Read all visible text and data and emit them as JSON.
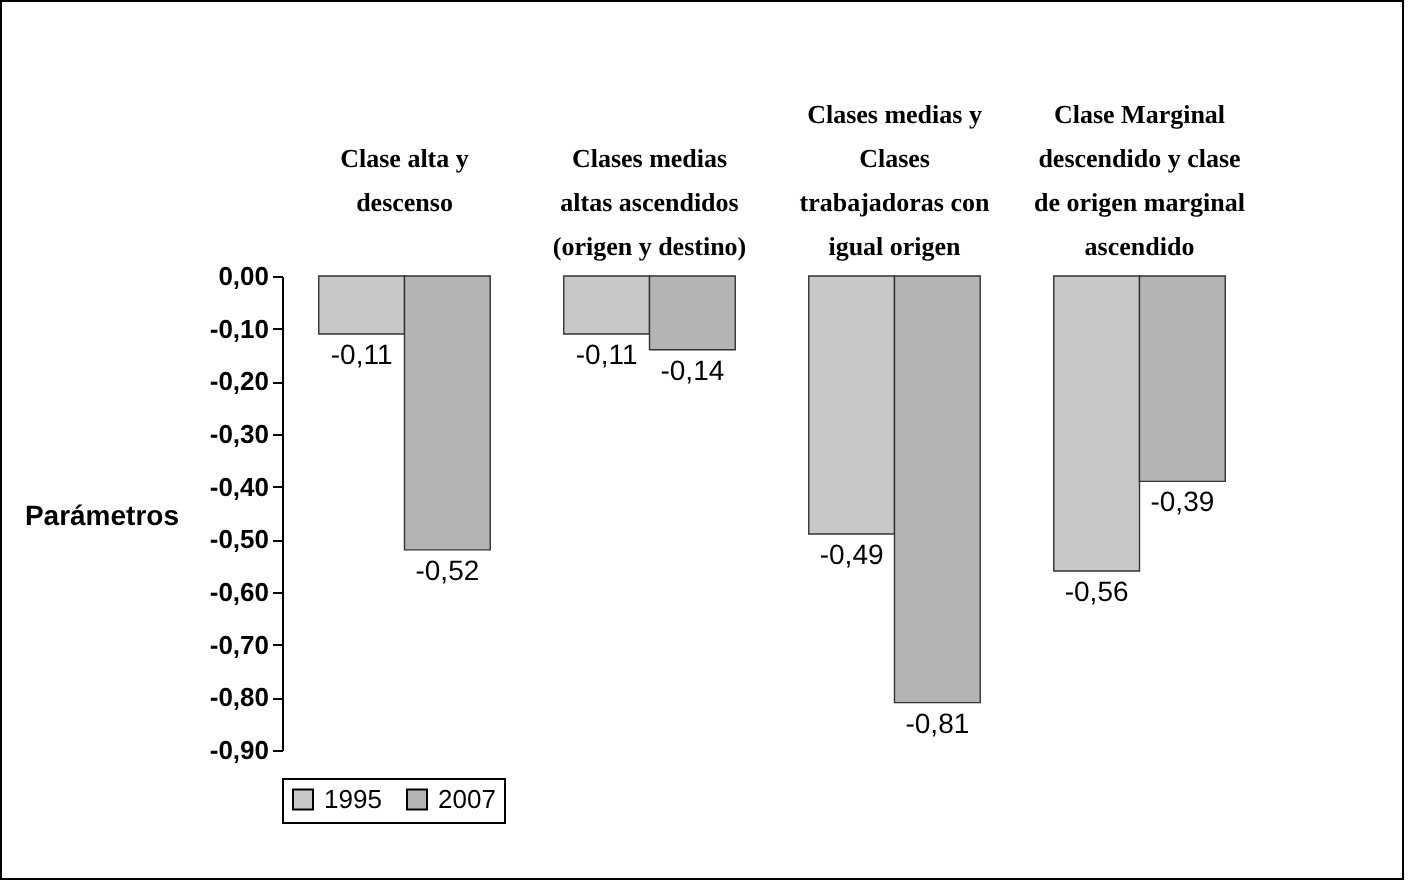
{
  "chart_data": {
    "type": "bar",
    "ylabel": "Parámetros",
    "categories": [
      "Clase alta y descenso",
      "Clases medias altas ascendidos (origen y destino)",
      "Clases medias y Clases trabajadoras con igual origen",
      "Clase Marginal descendido y clase de origen marginal ascendido"
    ],
    "series": [
      {
        "name": "1995",
        "color": "#c8c8c8",
        "values": [
          -0.11,
          -0.11,
          -0.49,
          -0.56
        ],
        "value_labels": [
          "-0,11",
          "-0,11",
          "-0,49",
          "-0,56"
        ]
      },
      {
        "name": "2007",
        "color": "#b4b4b4",
        "values": [
          -0.52,
          -0.14,
          -0.81,
          -0.39
        ],
        "value_labels": [
          "-0,52",
          "-0,14",
          "-0,81",
          "-0,39"
        ]
      }
    ],
    "ylim": [
      -0.9,
      0
    ],
    "yticks": [
      {
        "value": 0,
        "label": "0,00"
      },
      {
        "value": -0.1,
        "label": "-0,10"
      },
      {
        "value": -0.2,
        "label": "-0,20"
      },
      {
        "value": -0.3,
        "label": "-0,30"
      },
      {
        "value": -0.4,
        "label": "-0,40"
      },
      {
        "value": -0.5,
        "label": "-0,50"
      },
      {
        "value": -0.6,
        "label": "-0,60"
      },
      {
        "value": -0.7,
        "label": "-0,70"
      },
      {
        "value": -0.8,
        "label": "-0,80"
      },
      {
        "value": -0.9,
        "label": "-0,90"
      }
    ],
    "grid": false,
    "legend": "bottom"
  }
}
